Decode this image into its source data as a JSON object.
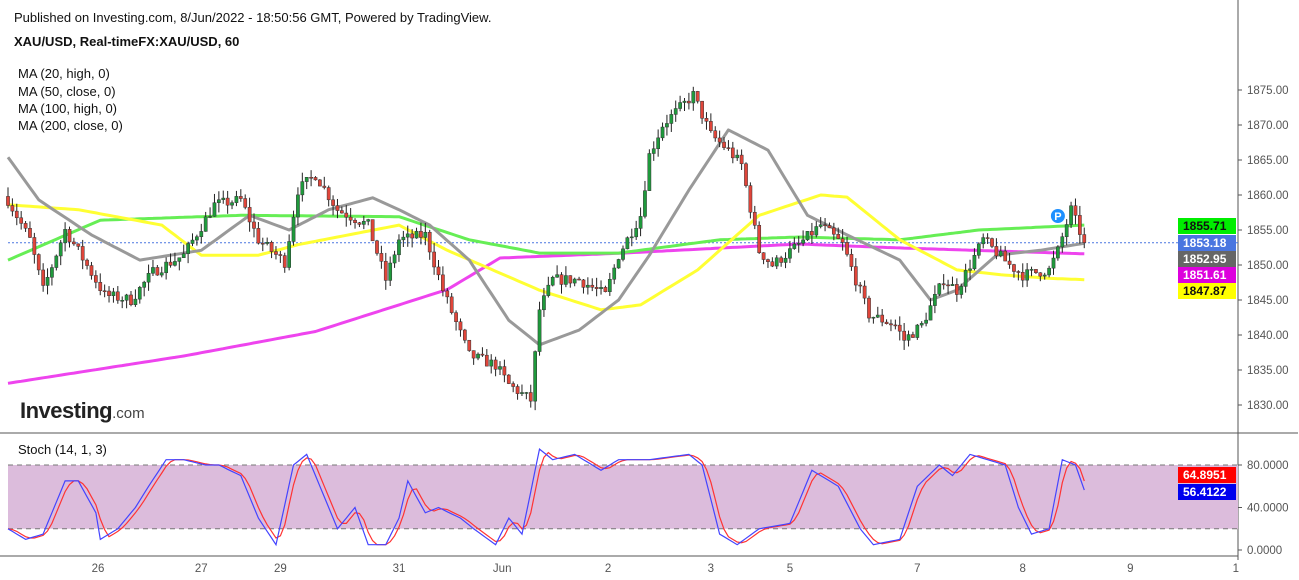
{
  "header": {
    "published": "Published on Investing.com, 8/Jun/2022 - 18:50:56 GMT, Powered by TradingView.",
    "symbol": "XAU/USD, Real-timeFX:XAU/USD, 60"
  },
  "logo": {
    "main": "Investing",
    "suffix": ".com"
  },
  "colors": {
    "up": "#1f9a3c",
    "down": "#e0453a",
    "ma20": "#999999",
    "ma50": "#ffff33",
    "ma100": "#66ee55",
    "ma200": "#ee44ee",
    "stoch_k": "#4444ff",
    "stoch_d": "#ff3333",
    "stoch_band": "#dcbcdc",
    "last_price": "#4a76e0"
  },
  "chart_data": [
    {
      "type": "candlestick",
      "title": "XAU/USD, Real-timeFX:XAU/USD, 60",
      "ylim": [
        1826,
        1879
      ],
      "yticks": [
        "1830.00",
        "1835.00",
        "1840.00",
        "1845.00",
        "1850.00",
        "1855.00",
        "1860.00",
        "1865.00",
        "1870.00",
        "1875.00"
      ],
      "ytick_values": [
        1830,
        1835,
        1840,
        1845,
        1850,
        1855,
        1860,
        1865,
        1870,
        1875
      ],
      "x_hours": 280,
      "xticks": [
        {
          "label": "26",
          "hour": 20.5
        },
        {
          "label": "27",
          "hour": 44
        },
        {
          "label": "29",
          "hour": 62
        },
        {
          "label": "31",
          "hour": 89
        },
        {
          "label": "Jun",
          "hour": 112.5
        },
        {
          "label": "2",
          "hour": 136.6
        },
        {
          "label": "3",
          "hour": 160
        },
        {
          "label": "5",
          "hour": 178
        },
        {
          "label": "7",
          "hour": 207
        },
        {
          "label": "8",
          "hour": 231
        },
        {
          "label": "9",
          "hour": 255.5
        },
        {
          "label": "1",
          "hour": 279.5
        }
      ],
      "close_path": [
        [
          0,
          1859.3
        ],
        [
          5,
          1853.6
        ],
        [
          8,
          1846.4
        ],
        [
          13,
          1855
        ],
        [
          16,
          1852
        ],
        [
          22,
          1845.7
        ],
        [
          28,
          1845
        ],
        [
          33,
          1849
        ],
        [
          40,
          1851.4
        ],
        [
          47,
          1858.6
        ],
        [
          53,
          1859.3
        ],
        [
          57,
          1853.6
        ],
        [
          63,
          1850.4
        ],
        [
          66,
          1860.7
        ],
        [
          70,
          1862.9
        ],
        [
          75,
          1857.9
        ],
        [
          82,
          1855.7
        ],
        [
          86,
          1847.9
        ],
        [
          89,
          1853.6
        ],
        [
          95,
          1854.3
        ],
        [
          99,
          1846.4
        ],
        [
          105,
          1837.1
        ],
        [
          111,
          1835.7
        ],
        [
          114,
          1832.9
        ],
        [
          119,
          1830.7
        ],
        [
          121,
          1843.6
        ],
        [
          124,
          1847.9
        ],
        [
          130,
          1847.9
        ],
        [
          136,
          1845.7
        ],
        [
          139,
          1851.4
        ],
        [
          144,
          1857.1
        ],
        [
          146,
          1865.7
        ],
        [
          149,
          1870
        ],
        [
          156,
          1874.3
        ],
        [
          160,
          1868.6
        ],
        [
          164,
          1866.4
        ],
        [
          167,
          1864.3
        ],
        [
          171,
          1852
        ],
        [
          174,
          1850
        ],
        [
          180,
          1852.9
        ],
        [
          185,
          1855.7
        ],
        [
          190,
          1852.9
        ],
        [
          196,
          1842.9
        ],
        [
          202,
          1841.4
        ],
        [
          204,
          1839.3
        ],
        [
          208,
          1841.4
        ],
        [
          213,
          1847.9
        ],
        [
          216,
          1846.4
        ],
        [
          222,
          1853.6
        ],
        [
          228,
          1850
        ],
        [
          231,
          1848.6
        ],
        [
          237,
          1849.3
        ],
        [
          239,
          1852
        ],
        [
          242,
          1857.9
        ],
        [
          245,
          1853.2
        ]
      ],
      "moving_averages": [
        {
          "name": "MA (20, high, 0)",
          "key": "ma20",
          "last": "1852.95",
          "points": [
            [
              0,
              1865.4
            ],
            [
              7,
              1859.3
            ],
            [
              19,
              1854.3
            ],
            [
              30,
              1850.7
            ],
            [
              44,
              1852.1
            ],
            [
              55,
              1857.1
            ],
            [
              64,
              1855
            ],
            [
              73,
              1857.9
            ],
            [
              83,
              1859.6
            ],
            [
              89,
              1857.9
            ],
            [
              96,
              1855.7
            ],
            [
              105,
              1850.7
            ],
            [
              114,
              1842.1
            ],
            [
              121,
              1838.6
            ],
            [
              130,
              1840.7
            ],
            [
              139,
              1845
            ],
            [
              146,
              1851.4
            ],
            [
              155,
              1860.7
            ],
            [
              164,
              1869.3
            ],
            [
              173,
              1866.4
            ],
            [
              182,
              1857.1
            ],
            [
              191,
              1854.3
            ],
            [
              203,
              1850.7
            ],
            [
              210,
              1845
            ],
            [
              216,
              1846.4
            ],
            [
              225,
              1851.4
            ],
            [
              235,
              1852.1
            ],
            [
              245,
              1853.1
            ]
          ]
        },
        {
          "name": "MA (50, close, 0)",
          "key": "ma50",
          "last": "1847.87",
          "points": [
            [
              0,
              1858.6
            ],
            [
              16,
              1857.9
            ],
            [
              35,
              1855.7
            ],
            [
              44,
              1851.4
            ],
            [
              57,
              1851.4
            ],
            [
              66,
              1852.9
            ],
            [
              89,
              1855.7
            ],
            [
              100,
              1852.1
            ],
            [
              121,
              1846.4
            ],
            [
              135,
              1843.6
            ],
            [
              144,
              1844.3
            ],
            [
              157,
              1849.3
            ],
            [
              171,
              1857.1
            ],
            [
              185,
              1860
            ],
            [
              191,
              1859.7
            ],
            [
              203,
              1853.6
            ],
            [
              216,
              1849.3
            ],
            [
              226,
              1848.6
            ],
            [
              237,
              1848.1
            ],
            [
              245,
              1847.9
            ]
          ]
        },
        {
          "name": "MA (100, high, 0)",
          "key": "ma100",
          "last": "1855.71",
          "points": [
            [
              0,
              1850.7
            ],
            [
              21,
              1856.4
            ],
            [
              53,
              1857.1
            ],
            [
              89,
              1856.9
            ],
            [
              105,
              1853.6
            ],
            [
              121,
              1851.7
            ],
            [
              139,
              1851.7
            ],
            [
              162,
              1853.6
            ],
            [
              180,
              1854
            ],
            [
              203,
              1853.6
            ],
            [
              221,
              1855
            ],
            [
              245,
              1855.7
            ]
          ]
        },
        {
          "name": "MA (200, close, 0)",
          "key": "ma200",
          "last": "1851.61",
          "points": [
            [
              0,
              1833.1
            ],
            [
              40,
              1837
            ],
            [
              70,
              1840.5
            ],
            [
              100,
              1846.5
            ],
            [
              112,
              1851
            ],
            [
              140,
              1851.7
            ],
            [
              180,
              1853
            ],
            [
              200,
              1852.5
            ],
            [
              245,
              1851.6
            ]
          ]
        }
      ],
      "last_price": "1853.18",
      "marker": "P"
    },
    {
      "type": "line",
      "title": "Stoch (14, 1, 3)",
      "ylim": [
        -5,
        95
      ],
      "yticks": [
        "0.0000",
        "40.0000",
        "80.0000"
      ],
      "ytick_values": [
        0,
        40,
        80
      ],
      "bands": [
        20,
        80
      ],
      "k_points": [
        [
          0,
          20
        ],
        [
          4,
          10
        ],
        [
          8,
          15
        ],
        [
          13,
          65
        ],
        [
          16,
          65
        ],
        [
          20,
          35
        ],
        [
          21,
          10
        ],
        [
          25,
          20
        ],
        [
          29,
          40
        ],
        [
          32,
          60
        ],
        [
          36,
          85
        ],
        [
          40,
          85
        ],
        [
          45,
          80
        ],
        [
          48,
          80
        ],
        [
          53,
          70
        ],
        [
          57,
          30
        ],
        [
          61,
          5
        ],
        [
          65,
          80
        ],
        [
          68,
          90
        ],
        [
          71,
          60
        ],
        [
          75,
          20
        ],
        [
          79,
          40
        ],
        [
          82,
          5
        ],
        [
          86,
          5
        ],
        [
          89,
          30
        ],
        [
          91,
          65
        ],
        [
          95,
          35
        ],
        [
          98,
          40
        ],
        [
          103,
          30
        ],
        [
          106,
          20
        ],
        [
          111,
          5
        ],
        [
          114,
          30
        ],
        [
          117,
          15
        ],
        [
          121,
          95
        ],
        [
          124,
          85
        ],
        [
          129,
          90
        ],
        [
          135,
          75
        ],
        [
          139,
          85
        ],
        [
          146,
          85
        ],
        [
          155,
          90
        ],
        [
          158,
          80
        ],
        [
          162,
          15
        ],
        [
          166,
          5
        ],
        [
          171,
          20
        ],
        [
          178,
          25
        ],
        [
          183,
          75
        ],
        [
          189,
          60
        ],
        [
          194,
          20
        ],
        [
          197,
          5
        ],
        [
          203,
          10
        ],
        [
          207,
          60
        ],
        [
          212,
          80
        ],
        [
          215,
          70
        ],
        [
          219,
          90
        ],
        [
          223,
          85
        ],
        [
          227,
          80
        ],
        [
          230,
          40
        ],
        [
          233,
          15
        ],
        [
          237,
          20
        ],
        [
          240,
          85
        ],
        [
          243,
          80
        ],
        [
          245,
          56.4
        ]
      ],
      "last_d": "64.8951",
      "last_k": "56.4122"
    }
  ]
}
